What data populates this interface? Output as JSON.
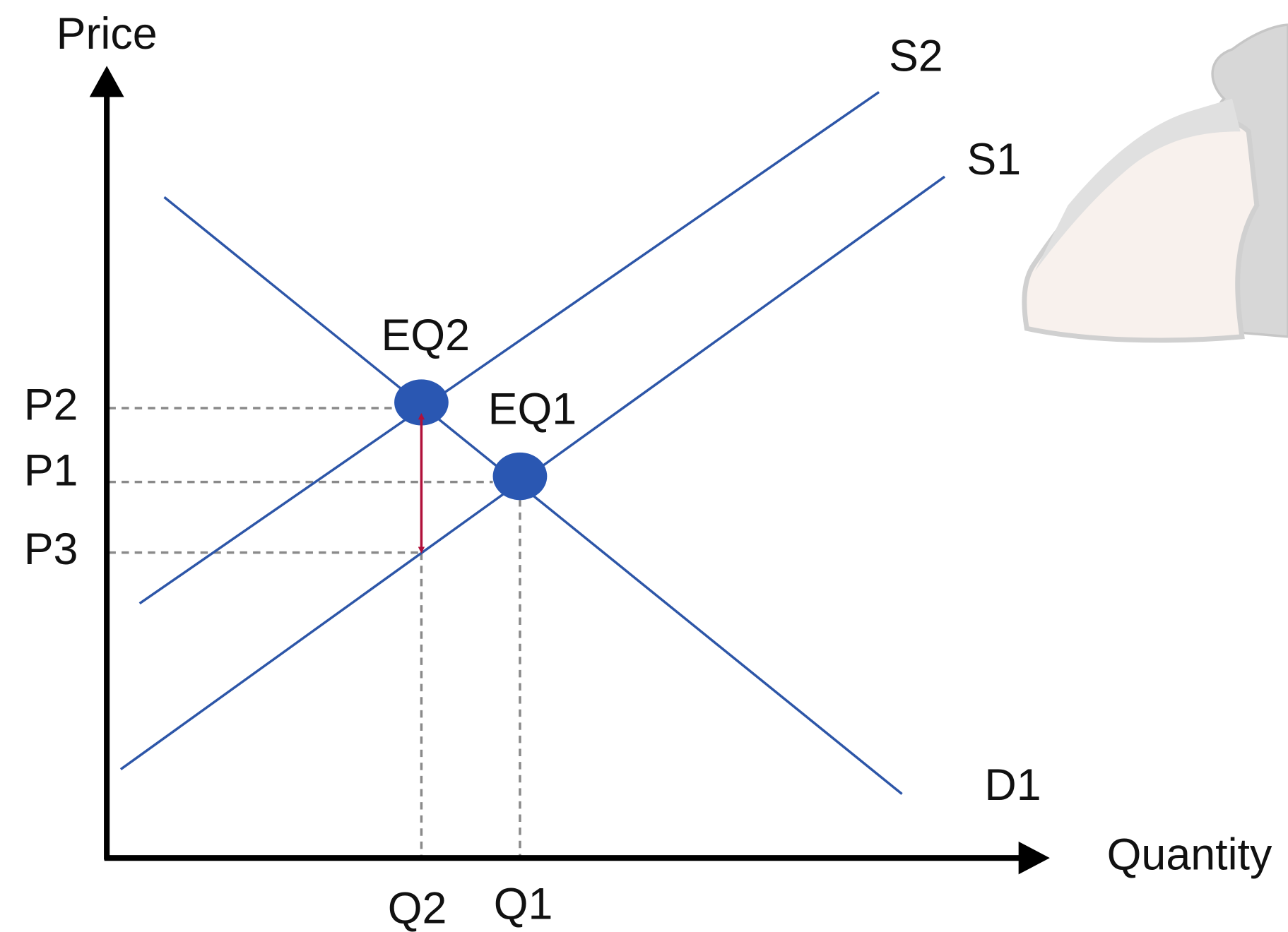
{
  "axes": {
    "y": "Price",
    "x": "Quantity"
  },
  "curves": [
    {
      "label": "S2"
    },
    {
      "label": "S1"
    },
    {
      "label": "D1"
    }
  ],
  "points": [
    {
      "label": "EQ2"
    },
    {
      "label": "EQ1"
    }
  ],
  "price_levels": [
    "P2",
    "P1",
    "P3"
  ],
  "quantity_levels": [
    "Q2",
    "Q1"
  ]
}
